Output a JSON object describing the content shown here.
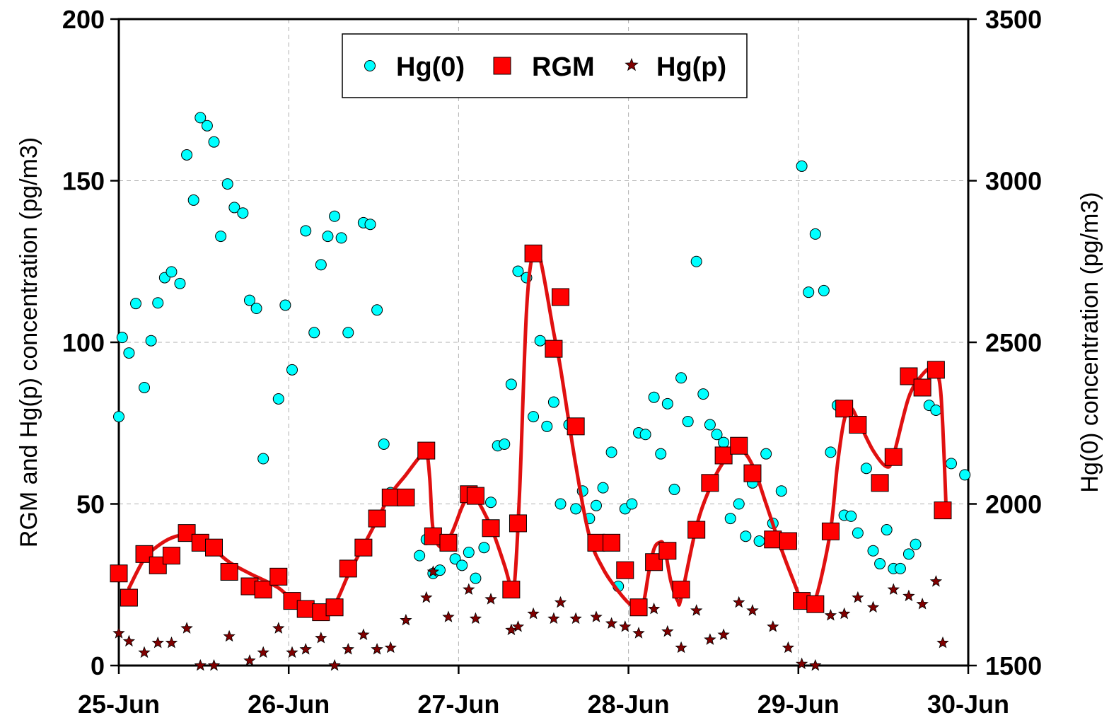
{
  "chart_data": {
    "type": "scatter",
    "title": "",
    "xlabel": "",
    "ylabel_left": "RGM and Hg(p) concentration (pg/m3)",
    "ylabel_right": "Hg(0) concentration (pg/m3)",
    "x_ticks": [
      {
        "x": 0,
        "label": "25-Jun"
      },
      {
        "x": 1,
        "label": "26-Jun"
      },
      {
        "x": 2,
        "label": "27-Jun"
      },
      {
        "x": 3,
        "label": "28-Jun"
      },
      {
        "x": 4,
        "label": "29-Jun"
      },
      {
        "x": 5,
        "label": "30-Jun"
      }
    ],
    "xlim": [
      0,
      5
    ],
    "ylim_left": [
      0,
      200
    ],
    "ylim_right": [
      1500,
      3500
    ],
    "yticks_left": [
      "0",
      "50",
      "100",
      "150",
      "200"
    ],
    "yticks_right": [
      "1500",
      "2000",
      "2500",
      "3000",
      "3500"
    ],
    "grid": true,
    "legend_position": "top-center",
    "colors": {
      "hg0": "#00FFFF",
      "rgm": "#FF0000",
      "hgp": "#800000",
      "line": "#E01010"
    },
    "series": [
      {
        "name": "Hg(0)",
        "axis": "right",
        "marker": "circle",
        "points": [
          [
            0.0,
            2270
          ],
          [
            0.02,
            2515
          ],
          [
            0.06,
            2467
          ],
          [
            0.1,
            2620
          ],
          [
            0.15,
            2360
          ],
          [
            0.19,
            2505
          ],
          [
            0.23,
            2622
          ],
          [
            0.27,
            2700
          ],
          [
            0.31,
            2718
          ],
          [
            0.36,
            2682
          ],
          [
            0.4,
            3080
          ],
          [
            0.44,
            2940
          ],
          [
            0.48,
            3195
          ],
          [
            0.52,
            3170
          ],
          [
            0.56,
            3120
          ],
          [
            0.6,
            2828
          ],
          [
            0.64,
            2990
          ],
          [
            0.68,
            2917
          ],
          [
            0.73,
            2900
          ],
          [
            0.77,
            2630
          ],
          [
            0.81,
            2605
          ],
          [
            0.85,
            2140
          ],
          [
            0.94,
            2325
          ],
          [
            0.98,
            2615
          ],
          [
            1.02,
            2415
          ],
          [
            1.1,
            2845
          ],
          [
            1.15,
            2530
          ],
          [
            1.19,
            2740
          ],
          [
            1.23,
            2828
          ],
          [
            1.27,
            2890
          ],
          [
            1.31,
            2823
          ],
          [
            1.35,
            2530
          ],
          [
            1.44,
            2870
          ],
          [
            1.48,
            2865
          ],
          [
            1.52,
            2600
          ],
          [
            1.56,
            2185
          ],
          [
            1.6,
            2035
          ],
          [
            1.69,
            2025
          ],
          [
            1.77,
            1840
          ],
          [
            1.81,
            1890
          ],
          [
            1.85,
            1785
          ],
          [
            1.89,
            1795
          ],
          [
            1.98,
            1830
          ],
          [
            2.02,
            1810
          ],
          [
            2.06,
            1850
          ],
          [
            2.1,
            1770
          ],
          [
            2.15,
            1865
          ],
          [
            2.19,
            2005
          ],
          [
            2.23,
            2180
          ],
          [
            2.27,
            2185
          ],
          [
            2.31,
            2370
          ],
          [
            2.35,
            2720
          ],
          [
            2.4,
            2700
          ],
          [
            2.44,
            2270
          ],
          [
            2.48,
            2505
          ],
          [
            2.52,
            2240
          ],
          [
            2.56,
            2315
          ],
          [
            2.6,
            2000
          ],
          [
            2.65,
            2245
          ],
          [
            2.69,
            1985
          ],
          [
            2.73,
            2040
          ],
          [
            2.77,
            1955
          ],
          [
            2.81,
            1995
          ],
          [
            2.85,
            2050
          ],
          [
            2.9,
            2160
          ],
          [
            2.94,
            1745
          ],
          [
            2.98,
            1985
          ],
          [
            3.02,
            2000
          ],
          [
            3.06,
            2220
          ],
          [
            3.1,
            2215
          ],
          [
            3.15,
            2330
          ],
          [
            3.19,
            2155
          ],
          [
            3.23,
            2310
          ],
          [
            3.27,
            2045
          ],
          [
            3.31,
            2390
          ],
          [
            3.35,
            2255
          ],
          [
            3.4,
            2750
          ],
          [
            3.44,
            2340
          ],
          [
            3.48,
            2245
          ],
          [
            3.52,
            2215
          ],
          [
            3.56,
            2190
          ],
          [
            3.6,
            1955
          ],
          [
            3.65,
            2000
          ],
          [
            3.69,
            1900
          ],
          [
            3.73,
            2065
          ],
          [
            3.77,
            1885
          ],
          [
            3.81,
            2155
          ],
          [
            3.85,
            1940
          ],
          [
            3.9,
            2040
          ],
          [
            4.02,
            3045
          ],
          [
            4.06,
            2655
          ],
          [
            4.1,
            2835
          ],
          [
            4.15,
            2660
          ],
          [
            4.19,
            2160
          ],
          [
            4.23,
            2305
          ],
          [
            4.27,
            1965
          ],
          [
            4.31,
            1962
          ],
          [
            4.35,
            1910
          ],
          [
            4.4,
            2110
          ],
          [
            4.44,
            1855
          ],
          [
            4.48,
            1815
          ],
          [
            4.52,
            1920
          ],
          [
            4.56,
            1800
          ],
          [
            4.6,
            1800
          ],
          [
            4.65,
            1845
          ],
          [
            4.69,
            1875
          ],
          [
            4.77,
            2305
          ],
          [
            4.81,
            2290
          ],
          [
            4.9,
            2125
          ],
          [
            4.98,
            2090
          ]
        ]
      },
      {
        "name": "RGM",
        "axis": "left",
        "marker": "square",
        "points": [
          [
            0.0,
            28.5
          ],
          [
            0.06,
            21
          ],
          [
            0.15,
            34.5
          ],
          [
            0.23,
            31
          ],
          [
            0.31,
            34
          ],
          [
            0.4,
            41
          ],
          [
            0.48,
            38
          ],
          [
            0.56,
            36.5
          ],
          [
            0.65,
            29
          ],
          [
            0.77,
            24.5
          ],
          [
            0.85,
            23.5
          ],
          [
            0.94,
            27.5
          ],
          [
            1.02,
            20
          ],
          [
            1.1,
            17.5
          ],
          [
            1.19,
            16.5
          ],
          [
            1.27,
            18
          ],
          [
            1.35,
            30
          ],
          [
            1.44,
            36.5
          ],
          [
            1.52,
            45.5
          ],
          [
            1.6,
            52
          ],
          [
            1.69,
            52
          ],
          [
            1.81,
            66.5
          ],
          [
            1.85,
            40
          ],
          [
            1.94,
            38
          ],
          [
            2.06,
            53
          ],
          [
            2.1,
            52.5
          ],
          [
            2.19,
            42.5
          ],
          [
            2.31,
            23.5
          ],
          [
            2.35,
            44
          ],
          [
            2.44,
            127.5
          ],
          [
            2.56,
            98
          ],
          [
            2.6,
            114
          ],
          [
            2.69,
            74
          ],
          [
            2.81,
            38
          ],
          [
            2.9,
            38
          ],
          [
            2.98,
            29.5
          ],
          [
            3.06,
            18
          ],
          [
            3.15,
            32
          ],
          [
            3.23,
            35.5
          ],
          [
            3.31,
            23.5
          ],
          [
            3.4,
            42
          ],
          [
            3.48,
            56.5
          ],
          [
            3.56,
            65
          ],
          [
            3.65,
            68
          ],
          [
            3.73,
            59.5
          ],
          [
            3.85,
            39
          ],
          [
            3.94,
            38.5
          ],
          [
            4.02,
            20
          ],
          [
            4.1,
            19
          ],
          [
            4.19,
            41.5
          ],
          [
            4.27,
            79.5
          ],
          [
            4.35,
            74.5
          ],
          [
            4.48,
            56.5
          ],
          [
            4.56,
            64.5
          ],
          [
            4.65,
            89.5
          ],
          [
            4.73,
            86
          ],
          [
            4.81,
            91.5
          ],
          [
            4.85,
            48
          ]
        ]
      },
      {
        "name": "Hg(p)",
        "axis": "left",
        "marker": "star",
        "points": [
          [
            0.0,
            10
          ],
          [
            0.06,
            7.5
          ],
          [
            0.15,
            4
          ],
          [
            0.23,
            7
          ],
          [
            0.31,
            7
          ],
          [
            0.4,
            11.5
          ],
          [
            0.48,
            0
          ],
          [
            0.56,
            0
          ],
          [
            0.65,
            9
          ],
          [
            0.77,
            1.5
          ],
          [
            0.85,
            4
          ],
          [
            0.94,
            11.5
          ],
          [
            1.02,
            4
          ],
          [
            1.1,
            5
          ],
          [
            1.19,
            8.5
          ],
          [
            1.27,
            0
          ],
          [
            1.35,
            5
          ],
          [
            1.44,
            9.5
          ],
          [
            1.52,
            5
          ],
          [
            1.6,
            5.5
          ],
          [
            1.69,
            14
          ],
          [
            1.81,
            21
          ],
          [
            1.85,
            29
          ],
          [
            1.94,
            15
          ],
          [
            2.06,
            23.5
          ],
          [
            2.1,
            14.5
          ],
          [
            2.19,
            20.5
          ],
          [
            2.31,
            11
          ],
          [
            2.35,
            12
          ],
          [
            2.44,
            16
          ],
          [
            2.56,
            14.5
          ],
          [
            2.6,
            19.5
          ],
          [
            2.69,
            14.5
          ],
          [
            2.81,
            15
          ],
          [
            2.9,
            13
          ],
          [
            2.98,
            12
          ],
          [
            3.06,
            10
          ],
          [
            3.15,
            17.5
          ],
          [
            3.23,
            10.5
          ],
          [
            3.31,
            5.5
          ],
          [
            3.4,
            17
          ],
          [
            3.48,
            8
          ],
          [
            3.56,
            9.5
          ],
          [
            3.65,
            19.5
          ],
          [
            3.73,
            17
          ],
          [
            3.85,
            12
          ],
          [
            3.94,
            5.5
          ],
          [
            4.02,
            0.5
          ],
          [
            4.1,
            0
          ],
          [
            4.19,
            15.5
          ],
          [
            4.27,
            16
          ],
          [
            4.35,
            21
          ],
          [
            4.44,
            18
          ],
          [
            4.56,
            23.5
          ],
          [
            4.65,
            21.5
          ],
          [
            4.73,
            19
          ],
          [
            4.81,
            26
          ],
          [
            4.85,
            7
          ]
        ]
      }
    ],
    "fit_line": {
      "name": "RGM smooth",
      "axis": "left",
      "points": [
        [
          0.06,
          24
        ],
        [
          0.15,
          33
        ],
        [
          0.23,
          37
        ],
        [
          0.31,
          39.5
        ],
        [
          0.4,
          40.5
        ],
        [
          0.48,
          39.5
        ],
        [
          0.56,
          36
        ],
        [
          0.65,
          32
        ],
        [
          0.77,
          28.5
        ],
        [
          0.85,
          26.5
        ],
        [
          0.94,
          24
        ],
        [
          1.02,
          20.5
        ],
        [
          1.1,
          18.5
        ],
        [
          1.19,
          17
        ],
        [
          1.27,
          19
        ],
        [
          1.35,
          28
        ],
        [
          1.44,
          37
        ],
        [
          1.52,
          45
        ],
        [
          1.6,
          53
        ],
        [
          1.69,
          59
        ],
        [
          1.77,
          64.5
        ],
        [
          1.81,
          66
        ],
        [
          1.83,
          58
        ],
        [
          1.85,
          42
        ],
        [
          1.9,
          36.5
        ],
        [
          1.96,
          41
        ],
        [
          2.02,
          49
        ],
        [
          2.06,
          52.5
        ],
        [
          2.1,
          52
        ],
        [
          2.19,
          43
        ],
        [
          2.27,
          31
        ],
        [
          2.31,
          24
        ],
        [
          2.33,
          26
        ],
        [
          2.36,
          55
        ],
        [
          2.4,
          110
        ],
        [
          2.44,
          128
        ],
        [
          2.48,
          126
        ],
        [
          2.56,
          103
        ],
        [
          2.6,
          92
        ],
        [
          2.69,
          62
        ],
        [
          2.77,
          40
        ],
        [
          2.85,
          30
        ],
        [
          2.94,
          23
        ],
        [
          3.02,
          18.5
        ],
        [
          3.08,
          18
        ],
        [
          3.12,
          29
        ],
        [
          3.15,
          36
        ],
        [
          3.18,
          38
        ],
        [
          3.21,
          37
        ],
        [
          3.25,
          26
        ],
        [
          3.29,
          20
        ],
        [
          3.31,
          21
        ],
        [
          3.4,
          43
        ],
        [
          3.48,
          55
        ],
        [
          3.56,
          63
        ],
        [
          3.65,
          67
        ],
        [
          3.73,
          62
        ],
        [
          3.81,
          50
        ],
        [
          3.9,
          36
        ],
        [
          3.98,
          25
        ],
        [
          4.02,
          20
        ],
        [
          4.08,
          19.5
        ],
        [
          4.12,
          24
        ],
        [
          4.19,
          42
        ],
        [
          4.23,
          62
        ],
        [
          4.27,
          76
        ],
        [
          4.31,
          79.5
        ],
        [
          4.35,
          76
        ],
        [
          4.44,
          66.5
        ],
        [
          4.52,
          61.5
        ],
        [
          4.56,
          65
        ],
        [
          4.65,
          83
        ],
        [
          4.73,
          90
        ],
        [
          4.79,
          92
        ],
        [
          4.83,
          88
        ],
        [
          4.85,
          74
        ],
        [
          4.87,
          48
        ]
      ]
    },
    "legend": [
      "Hg(0)",
      "RGM",
      "Hg(p)"
    ]
  }
}
